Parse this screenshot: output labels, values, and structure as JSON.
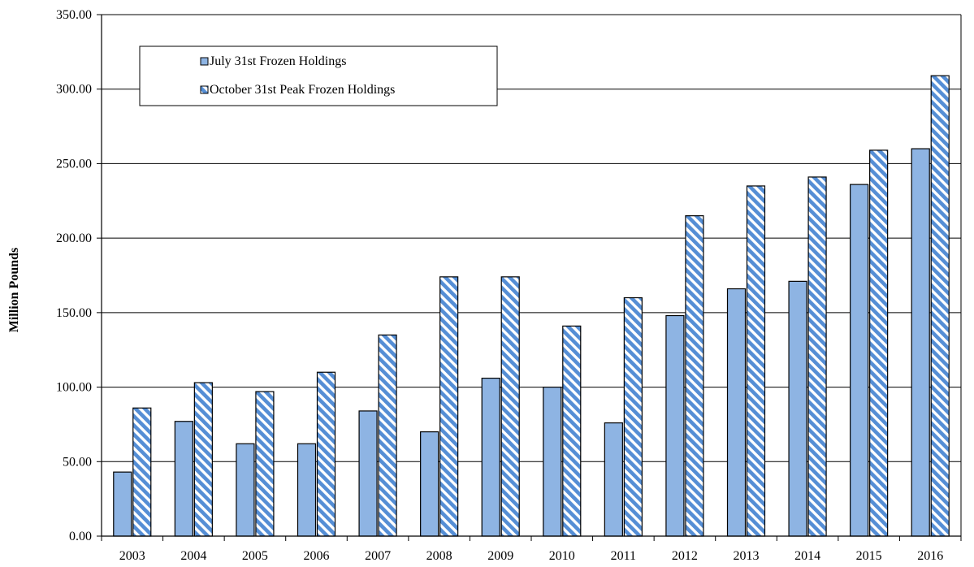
{
  "chart_data": {
    "type": "bar",
    "title": "",
    "xlabel": "",
    "ylabel": "Million Pounds",
    "ylim": [
      0,
      350
    ],
    "yticks": [
      "0.00",
      "50.00",
      "100.00",
      "150.00",
      "200.00",
      "250.00",
      "300.00",
      "350.00"
    ],
    "grid": true,
    "legend_position": "top-left",
    "categories": [
      "2003",
      "2004",
      "2005",
      "2006",
      "2007",
      "2008",
      "2009",
      "2010",
      "2011",
      "2012",
      "2013",
      "2014",
      "2015",
      "2016"
    ],
    "series": [
      {
        "name": "July 31st Frozen Holdings",
        "color": "#8eb4e3",
        "pattern": "solid",
        "values": [
          43,
          77,
          62,
          62,
          84,
          70,
          106,
          100,
          76,
          148,
          166,
          171,
          236,
          260
        ]
      },
      {
        "name": "October 31st Peak Frozen Holdings",
        "color": "#558ed5",
        "pattern": "diagonal-stripes",
        "values": [
          86,
          103,
          97,
          110,
          135,
          174,
          174,
          141,
          160,
          215,
          235,
          241,
          259,
          309
        ]
      }
    ]
  }
}
